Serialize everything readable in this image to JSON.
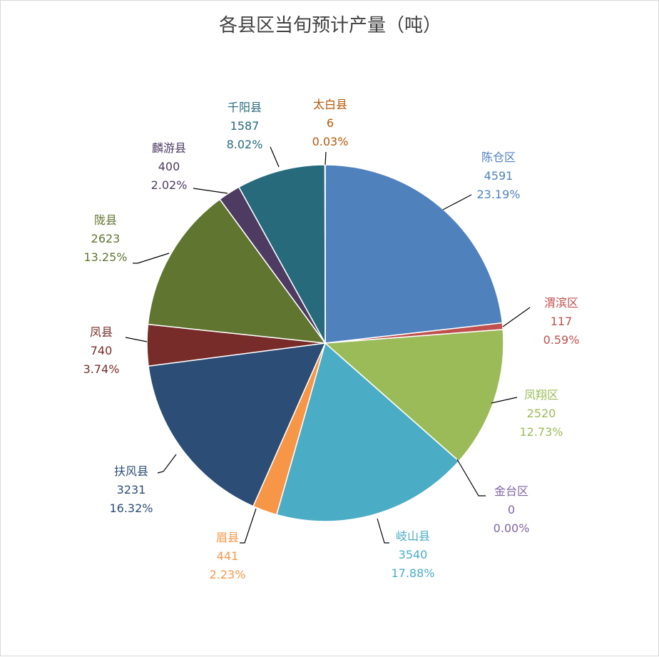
{
  "chart_data": {
    "type": "pie",
    "title": "各县区当旬预计产量（吨）",
    "series": [
      {
        "name": "",
        "slices": [
          {
            "label": "陈仓区",
            "value": 4591,
            "percent": "23.19%",
            "color": "#4f81bd"
          },
          {
            "label": "渭滨区",
            "value": 117,
            "percent": "0.59%",
            "color": "#c0504d"
          },
          {
            "label": "凤翔区",
            "value": 2520,
            "percent": "12.73%",
            "color": "#9bbb59"
          },
          {
            "label": "金台区",
            "value": 0,
            "percent": "0.00%",
            "color": "#8064a2"
          },
          {
            "label": "岐山县",
            "value": 3540,
            "percent": "17.88%",
            "color": "#4bacc6"
          },
          {
            "label": "眉县",
            "value": 441,
            "percent": "2.23%",
            "color": "#f79646"
          },
          {
            "label": "扶风县",
            "value": 3231,
            "percent": "16.32%",
            "color": "#2c4d75"
          },
          {
            "label": "凤县",
            "value": 740,
            "percent": "3.74%",
            "color": "#772c2a"
          },
          {
            "label": "陇县",
            "value": 2623,
            "percent": "13.25%",
            "color": "#5f7530"
          },
          {
            "label": "麟游县",
            "value": 400,
            "percent": "2.02%",
            "color": "#4d3b62"
          },
          {
            "label": "千阳县",
            "value": 1587,
            "percent": "8.02%",
            "color": "#276a7c"
          },
          {
            "label": "太白县",
            "value": 6,
            "percent": "0.03%",
            "color": "#b65708"
          }
        ]
      }
    ],
    "legend": "none",
    "data_labels": "category, value, percent"
  }
}
